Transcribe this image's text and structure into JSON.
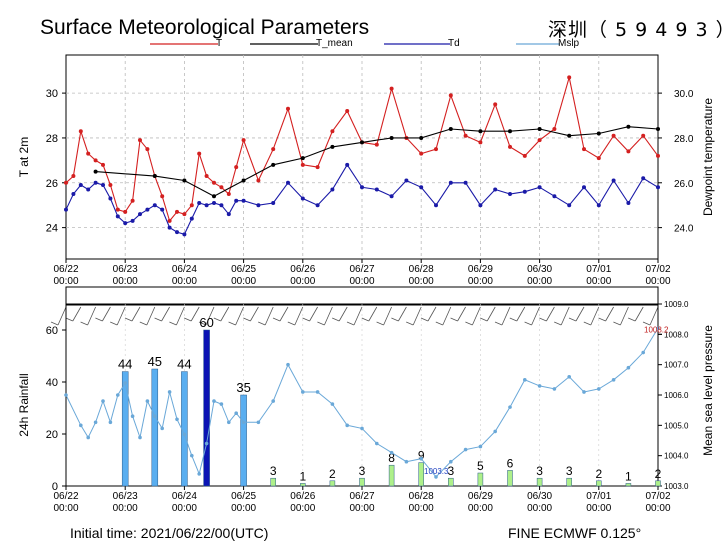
{
  "header": {
    "title": "Surface Meteorological Parameters",
    "station": "深圳（ 5 9 4 9 3 ）"
  },
  "footer": {
    "init_time": "Initial time: 2021/06/22/00(UTC)",
    "model": "FINE ECMWF 0.125°"
  },
  "colors": {
    "t": "#d42020",
    "t_mean": "#000000",
    "td": "#1a1aa8",
    "mslp": "#6aa8d8",
    "rain_bar": "#5aaef0",
    "rain_bar_max": "#0b14b4",
    "rain_bar_small": "#aef08a"
  },
  "chart_data": [
    {
      "id": "temperature",
      "type": "line",
      "ylabel": "T at 2m",
      "y2label": "Dewpoint temperature",
      "ylim": [
        22.6,
        31.7
      ],
      "yticks": [
        24,
        26,
        28,
        30
      ],
      "y2ticks": [
        "24.0",
        "26.0",
        "28.0",
        "30.0"
      ],
      "x_tick_labels": [
        [
          "06/22",
          "00:00"
        ],
        [
          "06/23",
          "00:00"
        ],
        [
          "06/24",
          "00:00"
        ],
        [
          "06/25",
          "00:00"
        ],
        [
          "06/26",
          "00:00"
        ],
        [
          "06/27",
          "00:00"
        ],
        [
          "06/28",
          "00:00"
        ],
        [
          "06/29",
          "00:00"
        ],
        [
          "06/30",
          "00:00"
        ],
        [
          "07/01",
          "00:00"
        ],
        [
          "07/02",
          "00:00"
        ]
      ],
      "xlim_hours": [
        0,
        240
      ],
      "legend": [
        "T",
        "T_mean",
        "Td",
        "Mslp"
      ],
      "series": [
        {
          "name": "T",
          "color_key": "t",
          "x": [
            0,
            3,
            6,
            9,
            12,
            15,
            18,
            21,
            24,
            27,
            30,
            33,
            36,
            39,
            42,
            45,
            48,
            51,
            54,
            57,
            60,
            63,
            66,
            69,
            72,
            78,
            84,
            90,
            96,
            102,
            108,
            114,
            120,
            126,
            132,
            138,
            144,
            150,
            156,
            162,
            168,
            174,
            180,
            186,
            192,
            198,
            204,
            210,
            216,
            222,
            228,
            234,
            240
          ],
          "y": [
            26.0,
            26.3,
            28.3,
            27.3,
            27.0,
            26.8,
            25.9,
            24.8,
            24.7,
            25.2,
            27.9,
            27.5,
            26.3,
            25.4,
            24.3,
            24.7,
            24.6,
            25.0,
            27.3,
            26.3,
            26.0,
            25.8,
            25.5,
            26.7,
            27.9,
            26.1,
            27.5,
            29.3,
            26.8,
            26.7,
            28.3,
            29.2,
            27.8,
            27.7,
            30.2,
            28.0,
            27.3,
            27.5,
            29.9,
            28.1,
            27.8,
            29.5,
            27.6,
            27.2,
            27.9,
            28.4,
            30.7,
            27.5,
            27.1,
            28.1,
            27.4,
            28.1,
            27.2
          ]
        },
        {
          "name": "T_mean",
          "color_key": "t_mean",
          "x": [
            12,
            36,
            48,
            60,
            72,
            84,
            96,
            108,
            120,
            132,
            144,
            156,
            168,
            180,
            192,
            204,
            216,
            228,
            240
          ],
          "y": [
            26.5,
            26.3,
            26.1,
            25.4,
            26.1,
            26.8,
            27.1,
            27.6,
            27.8,
            28.0,
            28.0,
            28.4,
            28.3,
            28.3,
            28.4,
            28.1,
            28.2,
            28.5,
            28.4
          ]
        },
        {
          "name": "Td",
          "color_key": "td",
          "x": [
            0,
            3,
            6,
            9,
            12,
            15,
            18,
            21,
            24,
            27,
            30,
            33,
            36,
            39,
            42,
            45,
            48,
            51,
            54,
            57,
            60,
            63,
            66,
            69,
            72,
            78,
            84,
            90,
            96,
            102,
            108,
            114,
            120,
            126,
            132,
            138,
            144,
            150,
            156,
            162,
            168,
            174,
            180,
            186,
            192,
            198,
            204,
            210,
            216,
            222,
            228,
            234,
            240
          ],
          "y": [
            24.8,
            25.5,
            25.9,
            25.7,
            26.0,
            25.9,
            25.3,
            24.5,
            24.2,
            24.3,
            24.6,
            24.8,
            25.0,
            24.8,
            24.0,
            23.8,
            23.7,
            24.4,
            25.1,
            25.0,
            25.1,
            25.0,
            24.6,
            25.2,
            25.2,
            25.0,
            25.1,
            26.0,
            25.3,
            25.0,
            25.7,
            26.8,
            25.8,
            25.7,
            25.4,
            26.1,
            25.8,
            25.0,
            26.0,
            26.0,
            25.0,
            25.7,
            25.5,
            25.6,
            25.8,
            25.4,
            25.0,
            25.8,
            25.0,
            26.1,
            25.1,
            26.2,
            25.8
          ]
        }
      ]
    },
    {
      "id": "rain_pressure",
      "type": "bar",
      "ylabel": "24h Rainfall",
      "y2label": "Mean sea level pressure",
      "ylim": [
        0,
        70
      ],
      "yticks": [
        0,
        20,
        40,
        60
      ],
      "y2lim": [
        1003.0,
        1009.0
      ],
      "y2ticks": [
        "1003.0",
        "1004.0",
        "1005.0",
        "1006.0",
        "1007.0",
        "1008.0",
        "1009.0"
      ],
      "xlim_hours": [
        0,
        240
      ],
      "rain": {
        "name": "24h Rainfall",
        "x": [
          24,
          36,
          48,
          57,
          72,
          84,
          96,
          108,
          120,
          132,
          144,
          156,
          168,
          180,
          192,
          204,
          216,
          228,
          240
        ],
        "values": [
          44,
          45,
          44,
          60,
          35,
          3,
          1,
          2,
          3,
          8,
          9,
          3,
          5,
          6,
          3,
          3,
          2,
          1,
          2
        ]
      },
      "mslp": {
        "name": "Mslp",
        "color_key": "mslp",
        "x": [
          0,
          6,
          9,
          12,
          15,
          18,
          21,
          24,
          27,
          30,
          33,
          36,
          39,
          42,
          45,
          48,
          51,
          54,
          57,
          60,
          63,
          66,
          69,
          72,
          78,
          84,
          90,
          96,
          102,
          108,
          114,
          120,
          126,
          132,
          138,
          144,
          150,
          156,
          162,
          168,
          174,
          180,
          186,
          192,
          198,
          204,
          210,
          216,
          222,
          228,
          234,
          240
        ],
        "y": [
          1006.0,
          1005.0,
          1004.6,
          1005.1,
          1005.8,
          1005.1,
          1006.0,
          1006.4,
          1005.3,
          1004.6,
          1005.8,
          1005.3,
          1004.9,
          1006.1,
          1005.2,
          1004.7,
          1004.0,
          1003.4,
          1004.4,
          1005.8,
          1005.7,
          1005.1,
          1005.4,
          1005.1,
          1005.1,
          1005.8,
          1007.0,
          1006.1,
          1006.1,
          1005.7,
          1005.0,
          1004.9,
          1004.4,
          1004.1,
          1003.8,
          1003.9,
          1003.3,
          1003.8,
          1004.2,
          1004.3,
          1004.8,
          1005.6,
          1006.5,
          1006.3,
          1006.2,
          1006.6,
          1006.1,
          1006.2,
          1006.5,
          1006.9,
          1007.4,
          1008.2
        ]
      },
      "annotations": [
        {
          "text": "1003.3",
          "x": 150,
          "y": 1003.3
        },
        {
          "text": "1008.2",
          "x": 240,
          "y": 1008.2
        }
      ]
    }
  ]
}
